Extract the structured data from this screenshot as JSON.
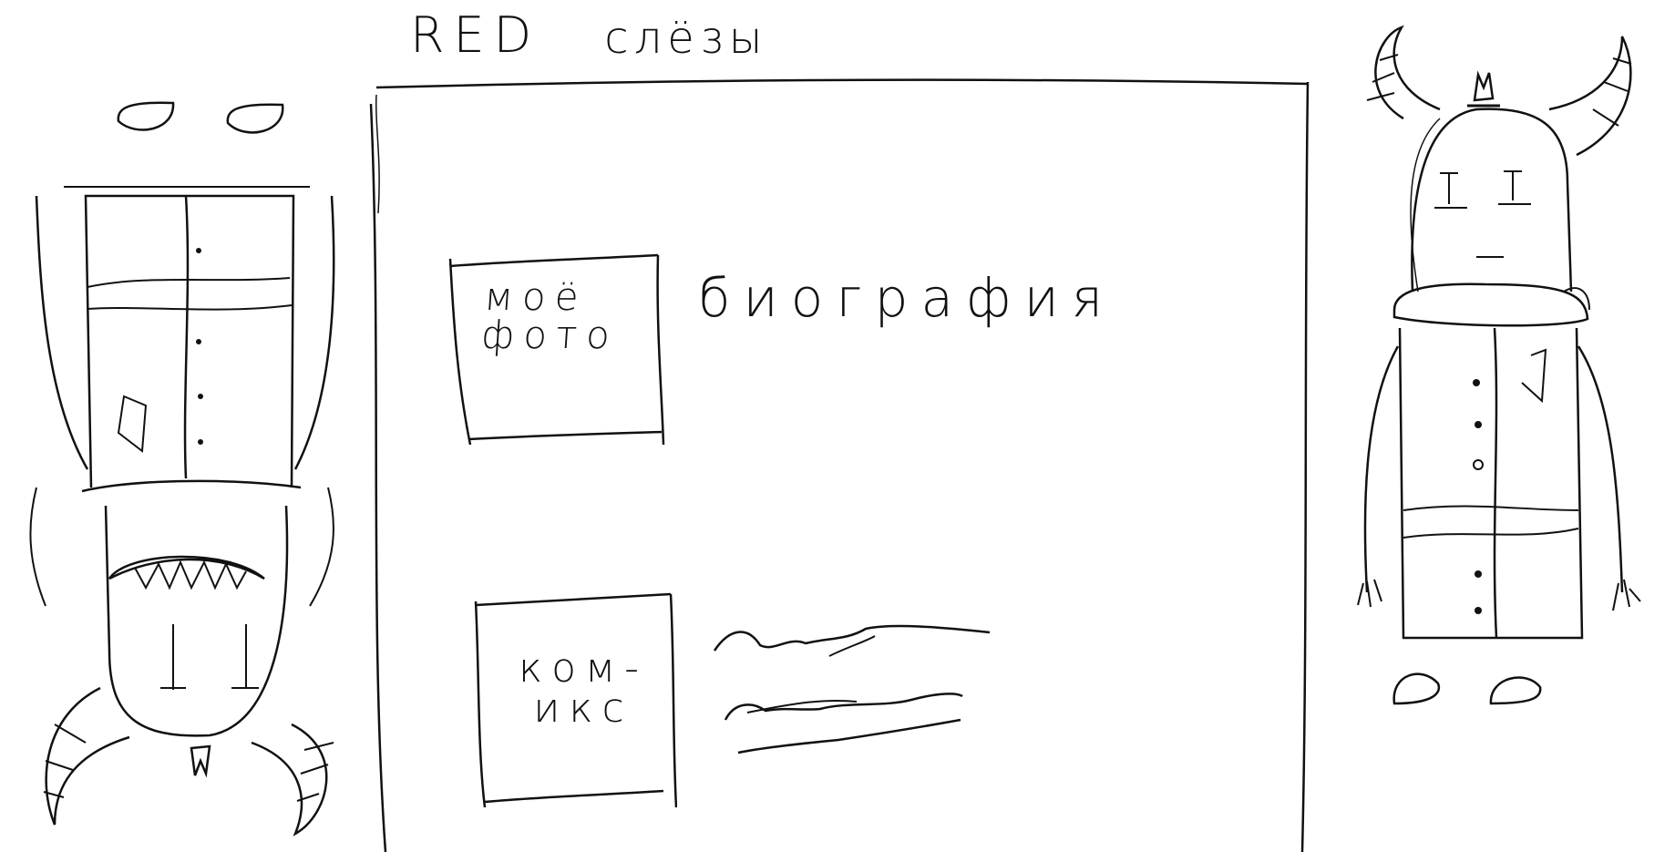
{
  "header": {
    "title_part1": "RED",
    "title_part2": "слёзы"
  },
  "main": {
    "photo_block": {
      "line1": "моё",
      "line2": "фото"
    },
    "bio_heading": "биография",
    "comics_block": {
      "line1": "ком-",
      "line2": "икс"
    }
  },
  "icons": {
    "left_character": "upside-down-horned-character",
    "right_character": "horned-character",
    "bio_lines": "scribble-text-lines"
  },
  "colors": {
    "ink": "#111111",
    "paper": "#ffffff"
  }
}
